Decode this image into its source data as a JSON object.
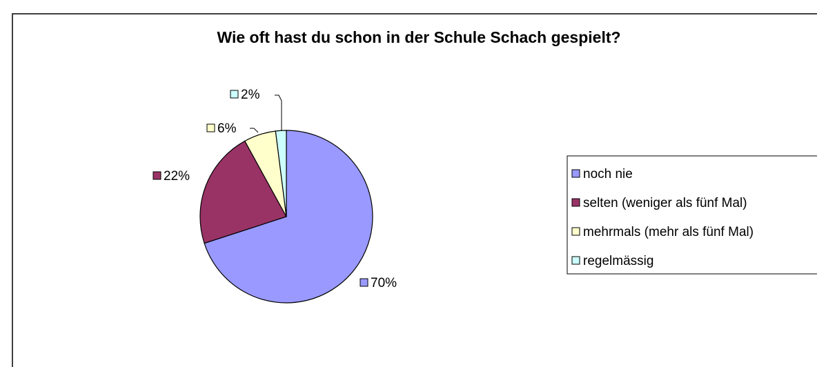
{
  "chart_data": {
    "type": "pie",
    "title": "Wie oft hast du schon in der Schule Schach gespielt?",
    "categories": [
      "noch nie",
      "selten (weniger als fünf Mal)",
      "mehrmals (mehr als fünf Mal)",
      "regelmässig"
    ],
    "values": [
      70,
      22,
      6,
      2
    ],
    "value_labels": [
      "70%",
      "22%",
      "6%",
      "2%"
    ],
    "colors": [
      "#9999ff",
      "#993366",
      "#ffffcc",
      "#ccffff"
    ],
    "legend": "right"
  }
}
